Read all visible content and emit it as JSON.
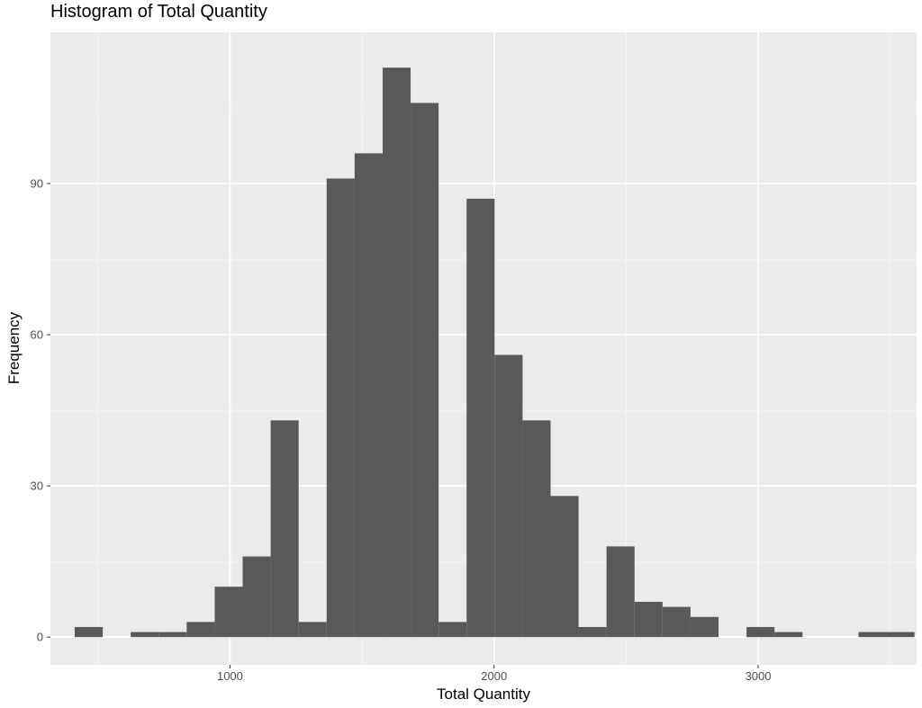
{
  "chart_data": {
    "type": "bar",
    "title": "Histogram of Total Quantity",
    "xlabel": "Total Quantity",
    "ylabel": "Frequency",
    "xlim": [
      320,
      3600
    ],
    "ylim": [
      -5.5,
      120
    ],
    "x_ticks": [
      1000,
      2000,
      3000
    ],
    "y_ticks": [
      0,
      30,
      60,
      90
    ],
    "x_minor_ticks": [
      500,
      1500,
      2500,
      3500
    ],
    "y_minor_ticks": [
      15,
      45,
      75,
      105
    ],
    "grid": true,
    "bin_width": 106,
    "bins": [
      {
        "x0": 412,
        "x1": 518,
        "count": 2
      },
      {
        "x0": 518,
        "x1": 624,
        "count": 0
      },
      {
        "x0": 624,
        "x1": 730,
        "count": 1
      },
      {
        "x0": 730,
        "x1": 836,
        "count": 1
      },
      {
        "x0": 836,
        "x1": 942,
        "count": 3
      },
      {
        "x0": 942,
        "x1": 1048,
        "count": 10
      },
      {
        "x0": 1048,
        "x1": 1154,
        "count": 16
      },
      {
        "x0": 1154,
        "x1": 1260,
        "count": 43
      },
      {
        "x0": 1260,
        "x1": 1366,
        "count": 3
      },
      {
        "x0": 1366,
        "x1": 1472,
        "count": 91
      },
      {
        "x0": 1472,
        "x1": 1578,
        "count": 96
      },
      {
        "x0": 1578,
        "x1": 1684,
        "count": 113
      },
      {
        "x0": 1684,
        "x1": 1790,
        "count": 106
      },
      {
        "x0": 1790,
        "x1": 1896,
        "count": 3
      },
      {
        "x0": 1896,
        "x1": 2002,
        "count": 87
      },
      {
        "x0": 2002,
        "x1": 2108,
        "count": 56
      },
      {
        "x0": 2108,
        "x1": 2214,
        "count": 43
      },
      {
        "x0": 2214,
        "x1": 2320,
        "count": 28
      },
      {
        "x0": 2320,
        "x1": 2426,
        "count": 2
      },
      {
        "x0": 2426,
        "x1": 2532,
        "count": 18
      },
      {
        "x0": 2532,
        "x1": 2638,
        "count": 7
      },
      {
        "x0": 2638,
        "x1": 2744,
        "count": 6
      },
      {
        "x0": 2744,
        "x1": 2850,
        "count": 4
      },
      {
        "x0": 2850,
        "x1": 2956,
        "count": 0
      },
      {
        "x0": 2956,
        "x1": 3062,
        "count": 2
      },
      {
        "x0": 3062,
        "x1": 3168,
        "count": 1
      },
      {
        "x0": 3168,
        "x1": 3274,
        "count": 0
      },
      {
        "x0": 3274,
        "x1": 3380,
        "count": 0
      },
      {
        "x0": 3380,
        "x1": 3486,
        "count": 1
      },
      {
        "x0": 3486,
        "x1": 3592,
        "count": 1
      }
    ],
    "colors": {
      "panel": "#ebebeb",
      "grid_major": "#ffffff",
      "grid_minor": "#f5f5f5",
      "bar": "#595959",
      "tick": "#333333"
    }
  }
}
